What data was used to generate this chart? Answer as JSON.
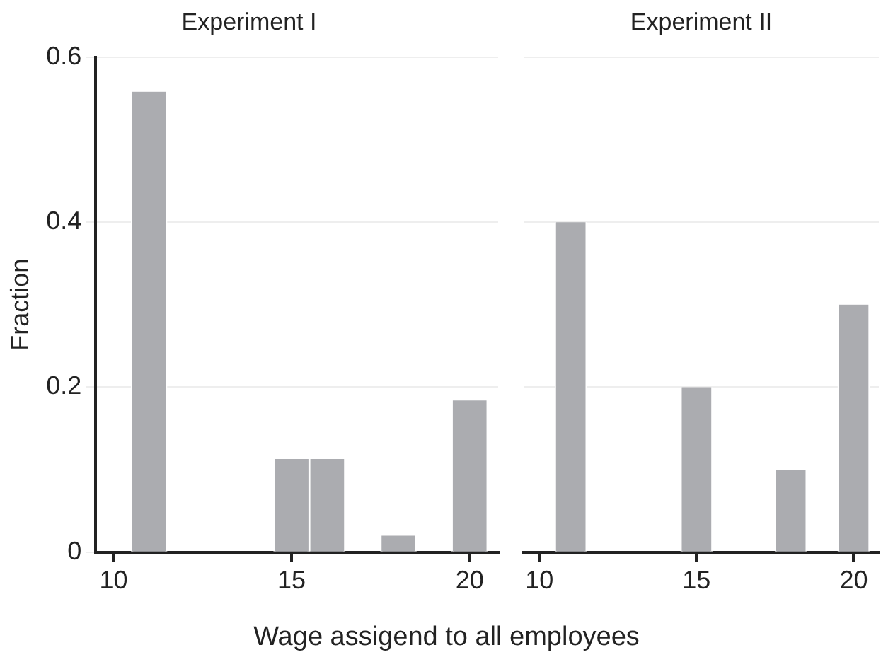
{
  "chart_data": [
    {
      "type": "histogram",
      "title": "Experiment I",
      "ylabel": "Fraction",
      "xlabel": "Wage assigend to all employees",
      "bins": [
        10.5,
        11.5,
        12.5,
        13.5,
        14.5,
        15.5,
        16.5,
        17.5,
        18.5,
        19.5,
        20.5
      ],
      "values": [
        0.558,
        0,
        0,
        0,
        0.113,
        0.113,
        0,
        0.02,
        0,
        0.184
      ],
      "color": "#abacb0",
      "xlim": [
        9.5,
        20.8
      ],
      "xticks": [
        10,
        15,
        20
      ],
      "ylim": [
        0,
        0.6
      ],
      "yticks": [
        0,
        0.2,
        0.4,
        0.6
      ],
      "grid": "y"
    },
    {
      "type": "histogram",
      "title": "Experiment II",
      "bins": [
        10.5,
        11.5,
        12.5,
        13.5,
        14.5,
        15.5,
        16.5,
        17.5,
        18.5,
        19.5,
        20.5
      ],
      "values": [
        0.4,
        0,
        0,
        0,
        0.2,
        0,
        0,
        0.1,
        0,
        0.3
      ],
      "color": "#abacb0",
      "xlim": [
        9.5,
        20.8
      ],
      "xticks": [
        10,
        15,
        20
      ],
      "ylim": [
        0,
        0.6
      ],
      "yticks": [
        0,
        0.2,
        0.4,
        0.6
      ],
      "grid": "y",
      "tick_labels": "x"
    }
  ]
}
